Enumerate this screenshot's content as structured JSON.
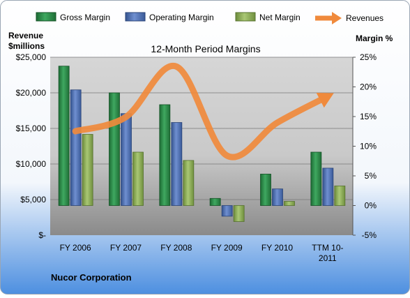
{
  "chart_data": {
    "type": "bar",
    "title": "12-Month Period Margins",
    "categories": [
      "FY 2006",
      "FY 2007",
      "FY 2008",
      "FY 2009",
      "FY 2010",
      "TTM 10-2011"
    ],
    "series": [
      {
        "name": "Gross Margin",
        "axis": "right",
        "values": [
          23.5,
          19,
          17,
          1.2,
          5.3,
          9
        ],
        "color": "#2e8b4a"
      },
      {
        "name": "Operating Margin",
        "axis": "right",
        "values": [
          19.5,
          15.5,
          14,
          -1.8,
          2.8,
          6.3
        ],
        "color": "#4f72b8"
      },
      {
        "name": "Net Margin",
        "axis": "right",
        "values": [
          12,
          9,
          7.6,
          -2.7,
          0.7,
          3.3
        ],
        "color": "#8db255"
      },
      {
        "name": "Revenues",
        "type": "line",
        "axis": "left",
        "values": [
          14600,
          16600,
          23700,
          11200,
          15800,
          19500
        ],
        "color": "#f08a3c"
      }
    ],
    "ylabel_left": [
      "Revenue",
      "$millions"
    ],
    "ylabel_right": "Margin %",
    "ylim_left": [
      0,
      25000
    ],
    "ylim_right": [
      -5,
      25
    ],
    "yticks_left": [
      "$25,000",
      "$20,000",
      "$15,000",
      "$10,000",
      "$5,000",
      "$-"
    ],
    "yticks_right": [
      "25%",
      "20%",
      "15%",
      "10%",
      "5%",
      "0%",
      "-5%"
    ],
    "xtick_labels": [
      [
        "FY 2006"
      ],
      [
        "FY 2007"
      ],
      [
        "FY 2008"
      ],
      [
        "FY 2009"
      ],
      [
        "FY 2010"
      ],
      [
        "TTM 10-",
        "2011"
      ]
    ],
    "grid": true,
    "legend": "top",
    "company": "Nucor Corporation"
  }
}
